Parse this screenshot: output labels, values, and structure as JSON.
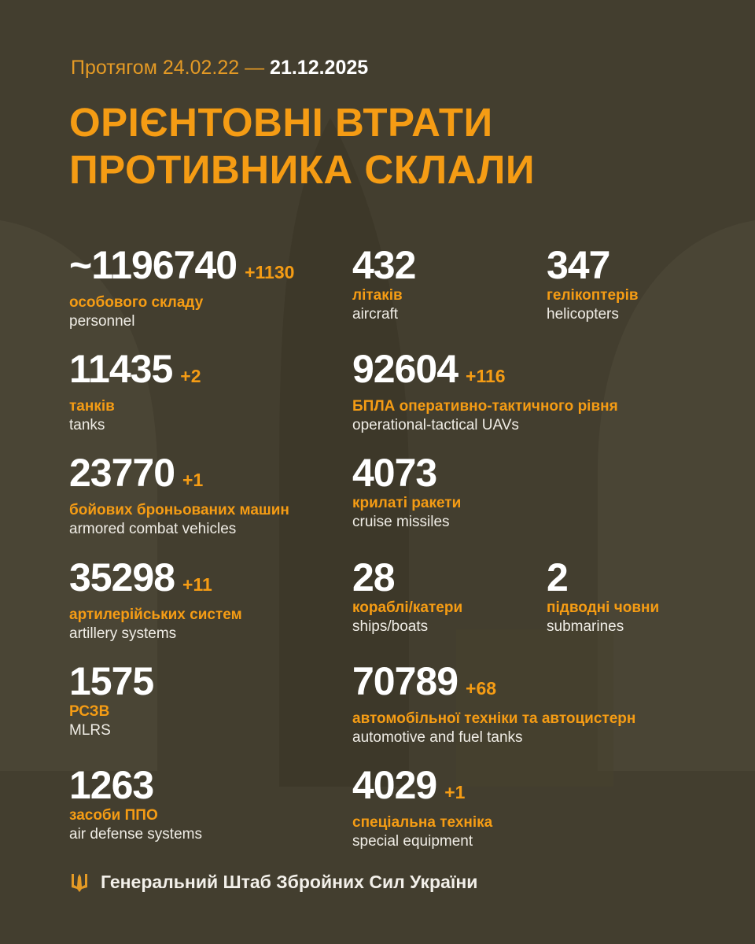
{
  "header": {
    "period_prefix": "Протягом 24.02.22 —",
    "period_end": "21.12.2025",
    "title_line1": "ОРІЄНТОВНІ ВТРАТИ",
    "title_line2": "ПРОТИВНИКА СКЛАЛИ"
  },
  "colors": {
    "background": "#433e2f",
    "accent": "#f59c14",
    "text": "#ffffff"
  },
  "stats": [
    {
      "value": "~1196740",
      "delta": "+1130",
      "ua": "особового складу",
      "en": "personnel"
    },
    {
      "value": "432",
      "delta": "",
      "ua": "літаків",
      "en": "aircraft"
    },
    {
      "value": "347",
      "delta": "",
      "ua": "гелікоптерів",
      "en": "helicopters"
    },
    {
      "value": "11435",
      "delta": "+2",
      "ua": "танків",
      "en": "tanks"
    },
    {
      "value": "92604",
      "delta": "+116",
      "ua": "БПЛА оперативно-тактичного рівня",
      "en": "operational-tactical UAVs"
    },
    {
      "value": "23770",
      "delta": "+1",
      "ua": "бойових броньованих машин",
      "en": "armored combat vehicles"
    },
    {
      "value": "4073",
      "delta": "",
      "ua": "крилаті ракети",
      "en": "cruise missiles"
    },
    {
      "value": "35298",
      "delta": "+11",
      "ua": "артилерійських систем",
      "en": "artillery systems"
    },
    {
      "value": "28",
      "delta": "",
      "ua": "кораблі/катери",
      "en": "ships/boats"
    },
    {
      "value": "2",
      "delta": "",
      "ua": "підводні човни",
      "en": "submarines"
    },
    {
      "value": "1575",
      "delta": "",
      "ua": "РСЗВ",
      "en": "MLRS"
    },
    {
      "value": "70789",
      "delta": "+68",
      "ua": "автомобільної техніки та автоцистерн",
      "en": "automotive and fuel tanks"
    },
    {
      "value": "1263",
      "delta": "",
      "ua": "засоби ППО",
      "en": "air defense systems"
    },
    {
      "value": "4029",
      "delta": "+1",
      "ua": "спеціальна техніка",
      "en": "special equipment"
    }
  ],
  "footer": {
    "text": "Генеральний Штаб Збройних Сил України",
    "logo_icon": "trident-icon"
  }
}
